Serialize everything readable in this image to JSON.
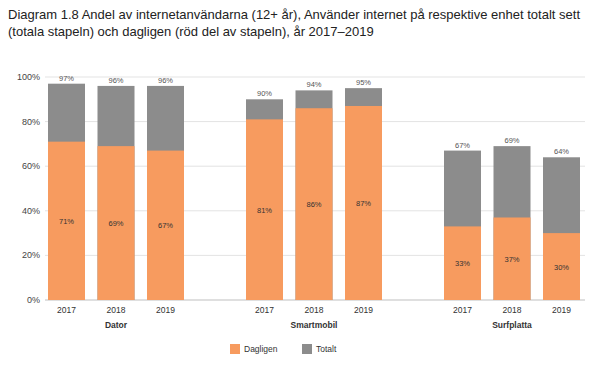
{
  "chart_data": {
    "type": "bar",
    "title": "Diagram 1.8 Andel av internetanvändarna (12+ år), Använder internet på respektive enhet totalt sett (totala stapeln) och dagligen (röd del av stapeln), år 2017–2019",
    "groups": [
      {
        "name": "Dator",
        "categories": [
          "2017",
          "2018",
          "2019"
        ]
      },
      {
        "name": "Smartmobil",
        "categories": [
          "2017",
          "2018",
          "2019"
        ]
      },
      {
        "name": "Surfplatta",
        "categories": [
          "2017",
          "2018",
          "2019"
        ]
      }
    ],
    "series": [
      {
        "name": "Dagligen",
        "color": "#f79b5f",
        "values": [
          71,
          69,
          67,
          81,
          86,
          87,
          33,
          37,
          30
        ],
        "value_labels": [
          "71%",
          "69%",
          "67%",
          "81%",
          "86%",
          "87%",
          "33%",
          "37%",
          "30%"
        ]
      },
      {
        "name": "Totalt",
        "color": "#8c8c8c",
        "values": [
          97,
          96,
          96,
          90,
          94,
          95,
          67,
          69,
          64
        ],
        "value_labels": [
          "97%",
          "96%",
          "96%",
          "90%",
          "94%",
          "95%",
          "67%",
          "69%",
          "64%"
        ]
      }
    ],
    "ylim": [
      0,
      100
    ],
    "yticks": [
      {
        "value": 0,
        "label": "0%"
      },
      {
        "value": 20,
        "label": "20%"
      },
      {
        "value": 40,
        "label": "40%"
      },
      {
        "value": 60,
        "label": "60%"
      },
      {
        "value": 80,
        "label": "80%"
      },
      {
        "value": 100,
        "label": "100%"
      }
    ],
    "grid": true,
    "stacked": false,
    "data_labels": true,
    "legend": "bottom"
  }
}
